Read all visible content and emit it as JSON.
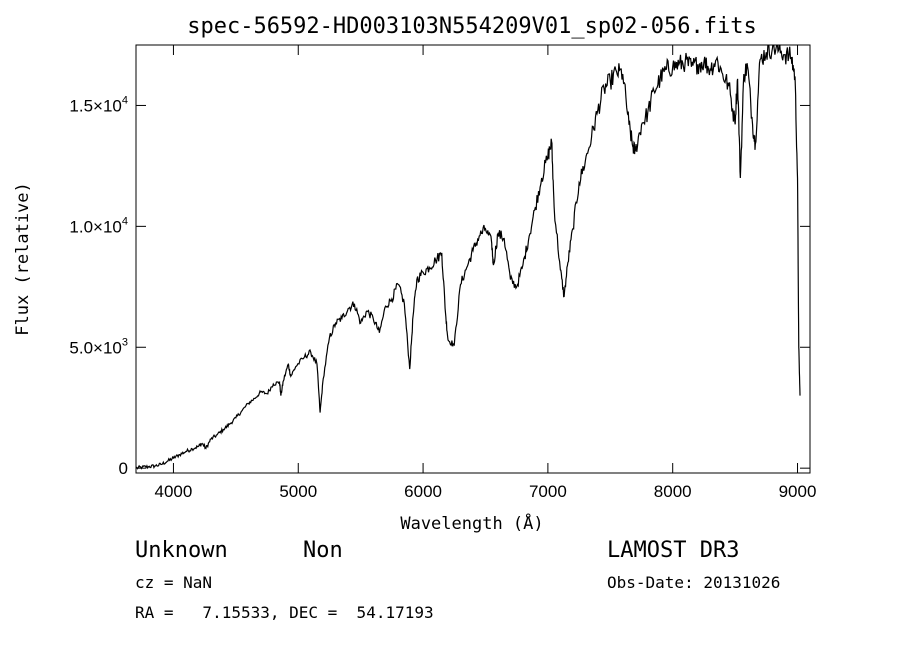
{
  "chart_data": {
    "type": "line",
    "title": "spec-56592-HD003103N554209V01_sp02-056.fits",
    "xlabel": "Wavelength (Å)",
    "ylabel": "Flux (relative)",
    "xlim": [
      3700,
      9100
    ],
    "ylim": [
      -200,
      17500
    ],
    "grid": false,
    "x_ticks": [
      {
        "value": 4000,
        "label": "4000"
      },
      {
        "value": 5000,
        "label": "5000"
      },
      {
        "value": 6000,
        "label": "6000"
      },
      {
        "value": 7000,
        "label": "7000"
      },
      {
        "value": 8000,
        "label": "8000"
      },
      {
        "value": 9000,
        "label": "9000"
      }
    ],
    "y_ticks": [
      {
        "value": 0,
        "mantissa": "0",
        "exponent": ""
      },
      {
        "value": 5000,
        "mantissa": "5.0×10",
        "exponent": "3"
      },
      {
        "value": 10000,
        "mantissa": "1.0×10",
        "exponent": "4"
      },
      {
        "value": 15000,
        "mantissa": "1.5×10",
        "exponent": "4"
      }
    ],
    "series": [
      {
        "color": "#000000",
        "points": [
          [
            3700,
            0
          ],
          [
            3750,
            40
          ],
          [
            3800,
            60
          ],
          [
            3850,
            90
          ],
          [
            3900,
            150
          ],
          [
            3950,
            280
          ],
          [
            4000,
            420
          ],
          [
            4050,
            560
          ],
          [
            4100,
            690
          ],
          [
            4150,
            800
          ],
          [
            4200,
            900
          ],
          [
            4230,
            1020
          ],
          [
            4260,
            820
          ],
          [
            4300,
            1200
          ],
          [
            4350,
            1380
          ],
          [
            4400,
            1600
          ],
          [
            4450,
            1820
          ],
          [
            4500,
            2080
          ],
          [
            4550,
            2380
          ],
          [
            4600,
            2680
          ],
          [
            4650,
            2880
          ],
          [
            4700,
            3150
          ],
          [
            4750,
            3080
          ],
          [
            4800,
            3480
          ],
          [
            4850,
            3550
          ],
          [
            4861,
            3000
          ],
          [
            4880,
            3600
          ],
          [
            4920,
            4300
          ],
          [
            4940,
            3800
          ],
          [
            4980,
            4200
          ],
          [
            5050,
            4600
          ],
          [
            5100,
            4800
          ],
          [
            5150,
            4300
          ],
          [
            5175,
            2300
          ],
          [
            5200,
            3700
          ],
          [
            5250,
            5400
          ],
          [
            5300,
            6000
          ],
          [
            5350,
            6200
          ],
          [
            5400,
            6600
          ],
          [
            5450,
            6800
          ],
          [
            5500,
            6000
          ],
          [
            5550,
            6500
          ],
          [
            5600,
            6200
          ],
          [
            5650,
            5600
          ],
          [
            5700,
            6700
          ],
          [
            5750,
            7000
          ],
          [
            5800,
            7600
          ],
          [
            5850,
            6800
          ],
          [
            5893,
            4100
          ],
          [
            5920,
            6300
          ],
          [
            5950,
            7800
          ],
          [
            6000,
            8100
          ],
          [
            6050,
            8300
          ],
          [
            6100,
            8600
          ],
          [
            6150,
            8900
          ],
          [
            6180,
            6400
          ],
          [
            6200,
            5300
          ],
          [
            6250,
            5100
          ],
          [
            6300,
            7600
          ],
          [
            6350,
            8300
          ],
          [
            6400,
            9000
          ],
          [
            6450,
            9600
          ],
          [
            6500,
            9900
          ],
          [
            6550,
            9300
          ],
          [
            6563,
            8400
          ],
          [
            6600,
            9700
          ],
          [
            6650,
            9500
          ],
          [
            6700,
            7800
          ],
          [
            6750,
            7500
          ],
          [
            6800,
            8400
          ],
          [
            6850,
            9600
          ],
          [
            6900,
            10800
          ],
          [
            6950,
            12000
          ],
          [
            7000,
            12900
          ],
          [
            7030,
            13500
          ],
          [
            7050,
            10800
          ],
          [
            7100,
            8200
          ],
          [
            7130,
            7100
          ],
          [
            7160,
            8500
          ],
          [
            7200,
            9900
          ],
          [
            7250,
            11800
          ],
          [
            7300,
            12700
          ],
          [
            7350,
            13700
          ],
          [
            7400,
            14800
          ],
          [
            7450,
            15700
          ],
          [
            7500,
            16000
          ],
          [
            7550,
            16400
          ],
          [
            7600,
            16300
          ],
          [
            7650,
            14200
          ],
          [
            7680,
            13300
          ],
          [
            7700,
            13100
          ],
          [
            7750,
            14200
          ],
          [
            7800,
            14700
          ],
          [
            7850,
            15600
          ],
          [
            7900,
            16100
          ],
          [
            7950,
            16500
          ],
          [
            8000,
            16600
          ],
          [
            8050,
            16700
          ],
          [
            8100,
            16800
          ],
          [
            8150,
            16600
          ],
          [
            8200,
            16700
          ],
          [
            8250,
            16800
          ],
          [
            8300,
            16500
          ],
          [
            8350,
            16900
          ],
          [
            8400,
            16300
          ],
          [
            8450,
            15800
          ],
          [
            8498,
            14300
          ],
          [
            8520,
            16100
          ],
          [
            8542,
            12000
          ],
          [
            8570,
            16300
          ],
          [
            8600,
            16600
          ],
          [
            8640,
            14200
          ],
          [
            8662,
            13400
          ],
          [
            8700,
            16900
          ],
          [
            8750,
            17200
          ],
          [
            8800,
            17400
          ],
          [
            8850,
            17300
          ],
          [
            8900,
            17100
          ],
          [
            8950,
            17000
          ],
          [
            8980,
            16200
          ],
          [
            9000,
            12000
          ],
          [
            9010,
            5000
          ],
          [
            9020,
            3000
          ]
        ]
      }
    ]
  },
  "info": {
    "object_name": "Unknown",
    "object_class": "Non",
    "survey": "LAMOST DR3",
    "cz": "cz = NaN",
    "obs_date": "Obs-Date: 20131026",
    "coords": "RA =   7.15533, DEC =  54.17193"
  }
}
